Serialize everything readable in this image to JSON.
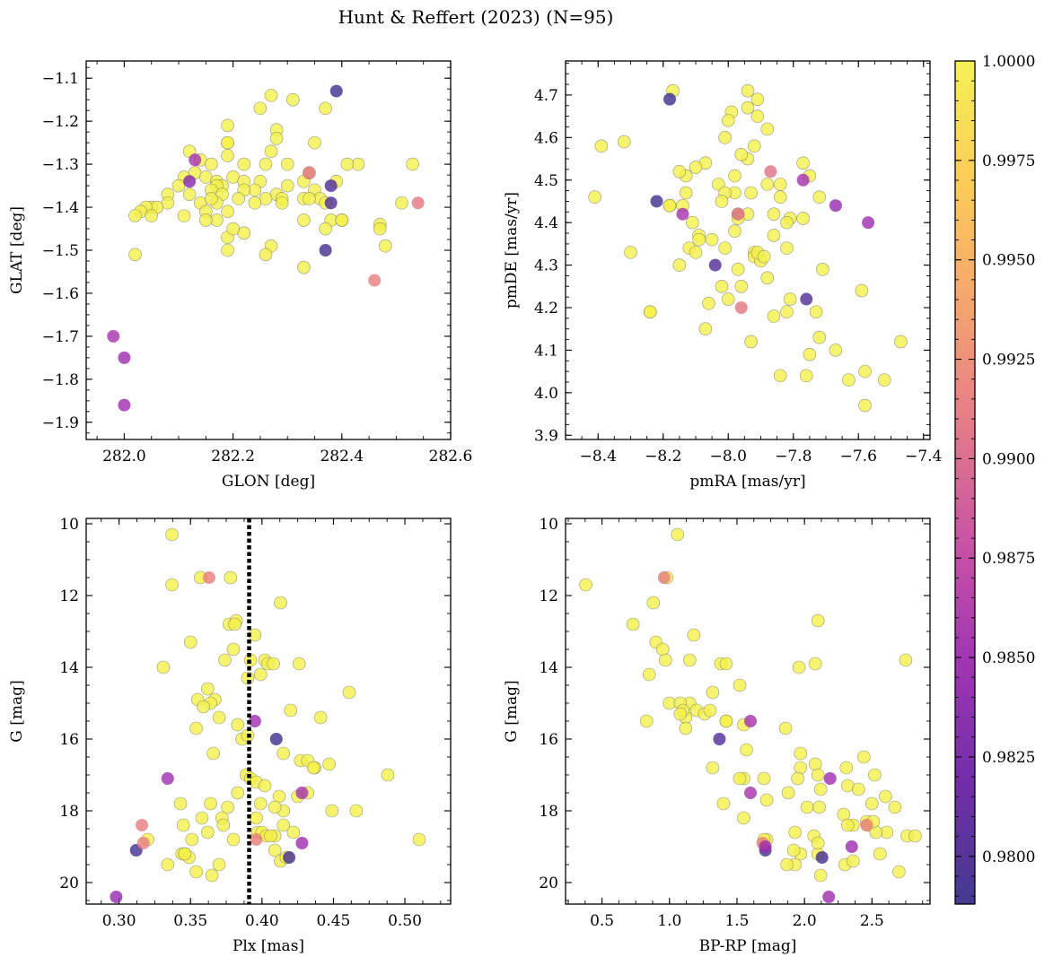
{
  "figure": {
    "title": "Hunt & Reffert (2023) (N=95)"
  },
  "colors": {
    "frame": "#000000",
    "edge": "#6b6b6b",
    "marker_alpha": 0.8,
    "vline": "#000000"
  },
  "chart_data": [
    {
      "type": "scatter",
      "id": "glon-glat",
      "xlabel": "GLON [deg]",
      "ylabel": "GLAT [deg]",
      "xlim": [
        281.93,
        282.6
      ],
      "ylim": [
        -1.94,
        -1.06
      ],
      "xticks": [
        282.0,
        282.2,
        282.4,
        282.6
      ],
      "xtick_labels": [
        "282.0",
        "282.2",
        "282.4",
        "282.6"
      ],
      "yticks": [
        -1.1,
        -1.2,
        -1.3,
        -1.4,
        -1.5,
        -1.6,
        -1.7,
        -1.8,
        -1.9
      ],
      "ytick_labels": [
        "−1.1",
        "−1.2",
        "−1.3",
        "−1.4",
        "−1.5",
        "−1.6",
        "−1.7",
        "−1.8",
        "−1.9"
      ],
      "x": [
        282.27,
        282.31,
        282.25,
        282.37,
        282.19,
        282.28,
        282.28,
        282.19,
        282.19,
        282.27,
        282.35,
        282.12,
        282.14,
        282.19,
        282.3,
        282.26,
        282.22,
        282.16,
        282.43,
        282.53,
        282.11,
        282.13,
        282.15,
        282.17,
        282.1,
        282.2,
        282.25,
        282.18,
        282.22,
        282.17,
        282.24,
        282.3,
        282.16,
        282.22,
        282.28,
        282.35,
        282.33,
        282.26,
        282.29,
        282.36,
        282.18,
        282.12,
        282.08,
        282.08,
        282.14,
        282.05,
        282.06,
        282.24,
        282.17,
        282.19,
        282.04,
        282.03,
        282.02,
        282.05,
        282.15,
        282.11,
        282.17,
        282.38,
        282.4,
        282.4,
        282.33,
        282.37,
        282.51,
        282.19,
        282.19,
        282.47,
        282.27,
        282.33,
        282.15,
        282.02,
        282.22,
        282.16,
        282.2,
        282.47,
        282.48,
        282.41,
        282.39,
        282.33,
        282.21,
        282.26,
        282.29,
        282.34,
        282.34,
        282.37,
        282.13,
        282.46,
        282.54,
        281.98,
        282.0,
        282.0,
        282.39,
        282.38,
        282.37,
        282.12,
        282.34,
        282.38
      ],
      "y": [
        -1.14,
        -1.15,
        -1.17,
        -1.17,
        -1.21,
        -1.22,
        -1.24,
        -1.25,
        -1.25,
        -1.27,
        -1.25,
        -1.27,
        -1.29,
        -1.28,
        -1.3,
        -1.3,
        -1.3,
        -1.3,
        -1.3,
        -1.3,
        -1.33,
        -1.32,
        -1.33,
        -1.34,
        -1.35,
        -1.33,
        -1.34,
        -1.35,
        -1.34,
        -1.35,
        -1.36,
        -1.35,
        -1.36,
        -1.36,
        -1.37,
        -1.36,
        -1.38,
        -1.38,
        -1.38,
        -1.38,
        -1.37,
        -1.37,
        -1.37,
        -1.39,
        -1.39,
        -1.4,
        -1.4,
        -1.39,
        -1.39,
        -1.41,
        -1.4,
        -1.41,
        -1.42,
        -1.42,
        -1.41,
        -1.42,
        -1.43,
        -1.43,
        -1.43,
        -1.43,
        -1.43,
        -1.45,
        -1.39,
        -1.47,
        -1.5,
        -1.44,
        -1.49,
        -1.54,
        -1.43,
        -1.51,
        -1.46,
        -1.38,
        -1.45,
        -1.45,
        -1.49,
        -1.3,
        -1.34,
        -1.34,
        -1.38,
        -1.51,
        -1.39,
        -1.38,
        -1.32,
        -1.39,
        -1.29,
        -1.57,
        -1.39,
        -1.7,
        -1.75,
        -1.86,
        -1.13,
        -1.35,
        -1.5,
        -1.34,
        -1.32,
        -1.39
      ],
      "prob": [
        1,
        1,
        1,
        1,
        1,
        1,
        1,
        1,
        1,
        1,
        1,
        1,
        1,
        1,
        1,
        1,
        1,
        1,
        1,
        1,
        1,
        1,
        1,
        1,
        1,
        1,
        1,
        1,
        1,
        1,
        1,
        1,
        1,
        1,
        1,
        1,
        1,
        1,
        1,
        1,
        1,
        1,
        1,
        1,
        1,
        1,
        1,
        1,
        1,
        1,
        1,
        1,
        1,
        1,
        1,
        1,
        1,
        1,
        1,
        1,
        1,
        1,
        1,
        1,
        1,
        1,
        1,
        1,
        1,
        1,
        1,
        1,
        1,
        1,
        1,
        1,
        1,
        1,
        1,
        1,
        1,
        1,
        1,
        1,
        0.9855,
        0.9915,
        0.991,
        0.9855,
        0.985,
        0.985,
        0.979,
        0.98,
        0.9795,
        0.9835,
        0.9905,
        0.98
      ]
    },
    {
      "type": "scatter",
      "id": "pmra-pmde",
      "xlabel": "pmRA [mas/yr]",
      "ylabel": "pmDE [mas/yr]",
      "xlim": [
        -8.5,
        -7.38
      ],
      "ylim": [
        3.89,
        4.78
      ],
      "xticks": [
        -8.4,
        -8.2,
        -8.0,
        -7.8,
        -7.6,
        -7.4
      ],
      "xtick_labels": [
        "−8.4",
        "−8.2",
        "−8.0",
        "−7.8",
        "−7.6",
        "−7.4"
      ],
      "yticks": [
        3.9,
        4.0,
        4.1,
        4.2,
        4.3,
        4.4,
        4.5,
        4.6,
        4.7
      ],
      "ytick_labels": [
        "3.9",
        "4.0",
        "4.1",
        "4.2",
        "4.3",
        "4.4",
        "4.5",
        "4.6",
        "4.7"
      ],
      "x": [
        -8.17,
        -7.94,
        -7.91,
        -7.99,
        -7.94,
        -8.32,
        -8.39,
        -8.0,
        -7.88,
        -8.01,
        -7.91,
        -7.84,
        -7.77,
        -7.94,
        -8.07,
        -8.1,
        -8.13,
        -7.96,
        -7.92,
        -7.75,
        -8.13,
        -8.03,
        -7.98,
        -8.14,
        -7.98,
        -8.18,
        -8.15,
        -7.93,
        -8.01,
        -7.88,
        -7.84,
        -7.94,
        -8.02,
        -7.72,
        -8.11,
        -7.97,
        -8.18,
        -8.09,
        -7.98,
        -8.05,
        -7.77,
        -7.81,
        -7.97,
        -8.12,
        -7.86,
        -7.82,
        -7.92,
        -7.92,
        -8.01,
        -8.15,
        -7.86,
        -7.82,
        -8.07,
        -8.1,
        -7.71,
        -7.96,
        -8.06,
        -7.9,
        -8.02,
        -8.3,
        -7.81,
        -8.24,
        -7.86,
        -7.82,
        -7.59,
        -7.67,
        -7.93,
        -7.72,
        -7.47,
        -7.75,
        -7.76,
        -7.84,
        -8.41,
        -8.24,
        -7.58,
        -7.63,
        -7.52,
        -7.58,
        -7.91,
        -7.89,
        -7.97,
        -8.0,
        -8.09,
        -7.73,
        -7.88,
        -7.77,
        -8.18,
        -8.22,
        -8.04,
        -7.76,
        -7.96,
        -7.87,
        -8.14,
        -7.97,
        -7.57,
        -7.67
      ],
      "y": [
        4.71,
        4.71,
        4.69,
        4.66,
        4.67,
        4.59,
        4.58,
        4.64,
        4.62,
        4.6,
        4.65,
        4.49,
        4.54,
        4.55,
        4.54,
        4.53,
        4.51,
        4.56,
        4.58,
        4.51,
        4.47,
        4.49,
        4.51,
        4.44,
        4.47,
        4.44,
        4.52,
        4.47,
        4.47,
        4.49,
        4.46,
        4.42,
        4.45,
        4.46,
        4.4,
        4.42,
        4.44,
        4.37,
        4.38,
        4.36,
        4.41,
        4.41,
        4.41,
        4.34,
        4.42,
        4.34,
        4.33,
        4.32,
        4.34,
        4.3,
        4.37,
        4.4,
        4.15,
        4.33,
        4.29,
        4.25,
        4.21,
        4.31,
        4.25,
        4.33,
        4.22,
        4.19,
        4.18,
        4.19,
        4.24,
        4.1,
        4.12,
        4.13,
        4.12,
        4.09,
        4.04,
        4.04,
        4.46,
        4.19,
        4.05,
        4.03,
        4.03,
        3.97,
        4.33,
        4.32,
        4.29,
        4.22,
        4.36,
        4.19,
        4.27,
        4.5,
        4.69,
        4.45,
        4.3,
        4.22,
        4.2,
        4.52,
        4.42,
        4.42,
        4.4,
        4.44
      ],
      "prob": [
        1,
        1,
        1,
        1,
        1,
        1,
        1,
        1,
        1,
        1,
        1,
        1,
        1,
        1,
        1,
        1,
        1,
        1,
        1,
        1,
        1,
        1,
        1,
        1,
        1,
        1,
        1,
        1,
        1,
        1,
        1,
        1,
        1,
        1,
        1,
        1,
        1,
        1,
        1,
        1,
        1,
        1,
        1,
        1,
        1,
        1,
        1,
        1,
        1,
        1,
        1,
        1,
        1,
        1,
        1,
        1,
        1,
        1,
        1,
        1,
        1,
        1,
        1,
        1,
        1,
        1,
        1,
        1,
        1,
        1,
        1,
        1,
        1,
        1,
        1,
        1,
        1,
        1,
        1,
        1,
        1,
        1,
        1,
        1,
        1,
        0.9855,
        0.979,
        0.979,
        0.98,
        0.98,
        0.991,
        0.9905,
        0.9855,
        0.99,
        0.985,
        0.9845
      ]
    },
    {
      "type": "scatter",
      "id": "plx-g",
      "xlabel": "Plx [mas]",
      "ylabel": "G [mag]",
      "xlim": [
        0.277,
        0.532
      ],
      "ylim": [
        20.6,
        9.85
      ],
      "xticks": [
        0.3,
        0.35,
        0.4,
        0.45,
        0.5
      ],
      "xtick_labels": [
        "0.30",
        "0.35",
        "0.40",
        "0.45",
        "0.50"
      ],
      "yticks": [
        10,
        12,
        14,
        16,
        18,
        20
      ],
      "ytick_labels": [
        "10",
        "12",
        "14",
        "16",
        "18",
        "20"
      ],
      "vline": 0.391,
      "x": [
        0.337,
        0.337,
        0.378,
        0.377,
        0.413,
        0.395,
        0.35,
        0.331,
        0.392,
        0.38,
        0.39,
        0.374,
        0.402,
        0.404,
        0.408,
        0.426,
        0.399,
        0.362,
        0.355,
        0.367,
        0.364,
        0.359,
        0.354,
        0.37,
        0.383,
        0.386,
        0.366,
        0.42,
        0.39,
        0.415,
        0.441,
        0.427,
        0.432,
        0.437,
        0.436,
        0.447,
        0.461,
        0.488,
        0.389,
        0.392,
        0.396,
        0.402,
        0.383,
        0.343,
        0.345,
        0.364,
        0.376,
        0.399,
        0.412,
        0.425,
        0.432,
        0.415,
        0.409,
        0.415,
        0.409,
        0.422,
        0.409,
        0.362,
        0.358,
        0.372,
        0.38,
        0.397,
        0.4,
        0.403,
        0.37,
        0.449,
        0.466,
        0.51,
        0.32,
        0.344,
        0.346,
        0.334,
        0.349,
        0.354,
        0.346,
        0.365,
        0.351,
        0.373,
        0.396,
        0.406,
        0.413,
        0.417,
        0.357,
        0.382,
        0.381,
        0.363,
        0.395,
        0.334,
        0.298,
        0.312,
        0.316,
        0.317,
        0.396,
        0.41,
        0.419,
        0.428,
        0.428
      ],
      "y": [
        10.3,
        11.7,
        11.5,
        12.8,
        12.2,
        13.1,
        13.3,
        14.0,
        13.8,
        13.5,
        14.3,
        13.8,
        13.8,
        13.9,
        13.9,
        13.9,
        14.2,
        14.6,
        14.9,
        14.9,
        15.0,
        15.1,
        15.7,
        15.4,
        15.6,
        16.0,
        16.4,
        15.2,
        15.9,
        16.4,
        15.4,
        16.6,
        16.6,
        16.8,
        16.8,
        16.7,
        14.7,
        17.0,
        17.0,
        17.1,
        17.2,
        17.3,
        17.5,
        17.8,
        18.4,
        17.8,
        17.9,
        17.8,
        17.6,
        17.6,
        17.5,
        18.0,
        17.9,
        18.4,
        18.7,
        18.6,
        19.1,
        18.6,
        18.2,
        18.2,
        18.8,
        18.6,
        18.6,
        18.7,
        19.5,
        18.0,
        18.0,
        18.8,
        18.8,
        19.2,
        19.2,
        19.5,
        19.3,
        19.7,
        19.2,
        19.8,
        18.8,
        18.4,
        18.2,
        18.7,
        19.4,
        19.3,
        11.5,
        12.7,
        12.8,
        11.5,
        15.5,
        17.1,
        20.4,
        19.1,
        18.4,
        18.9,
        18.8,
        16.0,
        19.3,
        18.9,
        17.5
      ],
      "prob": [
        1,
        1,
        1,
        1,
        1,
        1,
        1,
        1,
        1,
        1,
        1,
        1,
        1,
        1,
        1,
        1,
        1,
        1,
        1,
        1,
        1,
        1,
        1,
        1,
        1,
        1,
        1,
        1,
        1,
        1,
        1,
        1,
        1,
        1,
        1,
        1,
        1,
        1,
        1,
        1,
        1,
        1,
        1,
        1,
        1,
        1,
        1,
        1,
        1,
        1,
        1,
        1,
        1,
        1,
        1,
        1,
        1,
        1,
        1,
        1,
        1,
        1,
        1,
        1,
        1,
        1,
        1,
        1,
        1,
        1,
        1,
        1,
        1,
        1,
        1,
        1,
        1,
        1,
        1,
        1,
        1,
        1,
        1,
        1,
        1,
        0.9915,
        0.985,
        0.985,
        0.9845,
        0.9795,
        0.9915,
        0.9915,
        0.9915,
        0.979,
        0.9795,
        0.985,
        0.9855
      ]
    },
    {
      "type": "scatter",
      "id": "bprp-g",
      "xlabel": "BP-RP [mag]",
      "ylabel": "G [mag]",
      "xlim": [
        0.23,
        2.93
      ],
      "ylim": [
        20.6,
        9.85
      ],
      "xticks": [
        0.5,
        1.0,
        1.5,
        2.0,
        2.5
      ],
      "xtick_labels": [
        "0.5",
        "1.0",
        "1.5",
        "2.0",
        "2.5"
      ],
      "yticks": [
        10,
        12,
        14,
        16,
        18,
        20
      ],
      "ytick_labels": [
        "10",
        "12",
        "14",
        "16",
        "18",
        "20"
      ],
      "x": [
        1.06,
        0.38,
        0.98,
        0.73,
        0.88,
        2.1,
        0.9,
        1.18,
        0.95,
        0.97,
        0.85,
        1.38,
        1.42,
        1.96,
        2.08,
        2.75,
        1.32,
        1.52,
        1.15,
        1.0,
        1.08,
        1.12,
        1.2,
        1.26,
        1.3,
        1.12,
        1.86,
        1.55,
        1.42,
        1.57,
        1.97,
        1.55,
        2.44,
        1.97,
        2.08,
        2.1,
        2.31,
        2.52,
        1.32,
        1.52,
        1.7,
        1.95,
        2.12,
        2.32,
        2.4,
        2.5,
        2.6,
        2.67,
        1.88,
        1.72,
        2.02,
        2.11,
        2.46,
        1.72,
        1.93,
        2.07,
        2.47,
        1.55,
        1.4,
        2.36,
        2.29,
        2.76,
        2.82,
        1.97,
        2.1,
        2.12,
        2.56,
        1.93,
        2.1,
        1.87,
        0.83,
        2.61,
        2.53,
        2.51,
        2.7,
        2.3,
        2.32,
        2.36,
        1.1,
        1.15,
        1.7,
        1.08,
        1.42,
        1.92,
        0.96,
        1.37,
        1.6,
        2.19,
        2.18,
        1.71,
        2.13,
        1.69,
        2.46,
        2.35,
        1.6,
        1.71
      ],
      "y": [
        10.3,
        11.7,
        11.5,
        12.8,
        12.2,
        12.7,
        13.3,
        13.1,
        13.5,
        13.8,
        14.2,
        13.9,
        13.9,
        14.0,
        13.9,
        13.8,
        14.7,
        14.5,
        15.0,
        15.0,
        15.0,
        15.4,
        15.2,
        15.3,
        15.2,
        15.7,
        15.7,
        15.6,
        15.5,
        16.3,
        16.4,
        17.1,
        16.5,
        16.8,
        16.7,
        17.0,
        16.8,
        17.0,
        16.8,
        17.1,
        17.1,
        17.1,
        17.4,
        17.3,
        17.4,
        17.8,
        17.6,
        17.9,
        17.5,
        17.7,
        17.9,
        17.9,
        18.3,
        18.8,
        18.6,
        18.7,
        18.4,
        18.2,
        17.8,
        18.4,
        18.1,
        18.7,
        18.7,
        19.2,
        19.2,
        19.8,
        19.2,
        19.5,
        18.9,
        19.5,
        15.5,
        18.6,
        18.6,
        18.3,
        19.7,
        19.5,
        18.4,
        19.4,
        15.2,
        13.8,
        18.8,
        15.3,
        15.5,
        19.1,
        11.5,
        16.0,
        17.5,
        17.1,
        20.4,
        19.1,
        19.3,
        18.9,
        18.4,
        19.0,
        15.5,
        19.0
      ],
      "prob": [
        1,
        1,
        1,
        1,
        1,
        1,
        1,
        1,
        1,
        1,
        1,
        1,
        1,
        1,
        1,
        1,
        1,
        1,
        1,
        1,
        1,
        1,
        1,
        1,
        1,
        1,
        1,
        1,
        1,
        1,
        1,
        1,
        1,
        1,
        1,
        1,
        1,
        1,
        1,
        1,
        1,
        1,
        1,
        1,
        1,
        1,
        1,
        1,
        1,
        1,
        1,
        1,
        1,
        1,
        1,
        1,
        1,
        1,
        1,
        1,
        1,
        1,
        1,
        1,
        1,
        1,
        1,
        1,
        1,
        1,
        1,
        1,
        1,
        1,
        1,
        1,
        1,
        1,
        1,
        1,
        1,
        1,
        1,
        1,
        0.9915,
        0.98,
        0.9855,
        0.985,
        0.985,
        0.979,
        0.9795,
        0.9915,
        0.9915,
        0.985,
        0.9855,
        0.985
      ]
    }
  ],
  "colorbar": {
    "min": 0.9788,
    "max": 1.0,
    "ticks": [
      0.98,
      0.9825,
      0.985,
      0.9875,
      0.99,
      0.9925,
      0.995,
      0.9975,
      1.0
    ],
    "tick_labels": [
      "0.9800",
      "0.9825",
      "0.9850",
      "0.9875",
      "0.9900",
      "0.9925",
      "0.9950",
      "0.9975",
      "1.0000"
    ],
    "colormap": "plasma",
    "stops": [
      "#3a2f8c",
      "#6a22a2",
      "#9b2ab0",
      "#c54aa0",
      "#e27582",
      "#f5a066",
      "#fcc94f",
      "#f4f04a"
    ]
  }
}
